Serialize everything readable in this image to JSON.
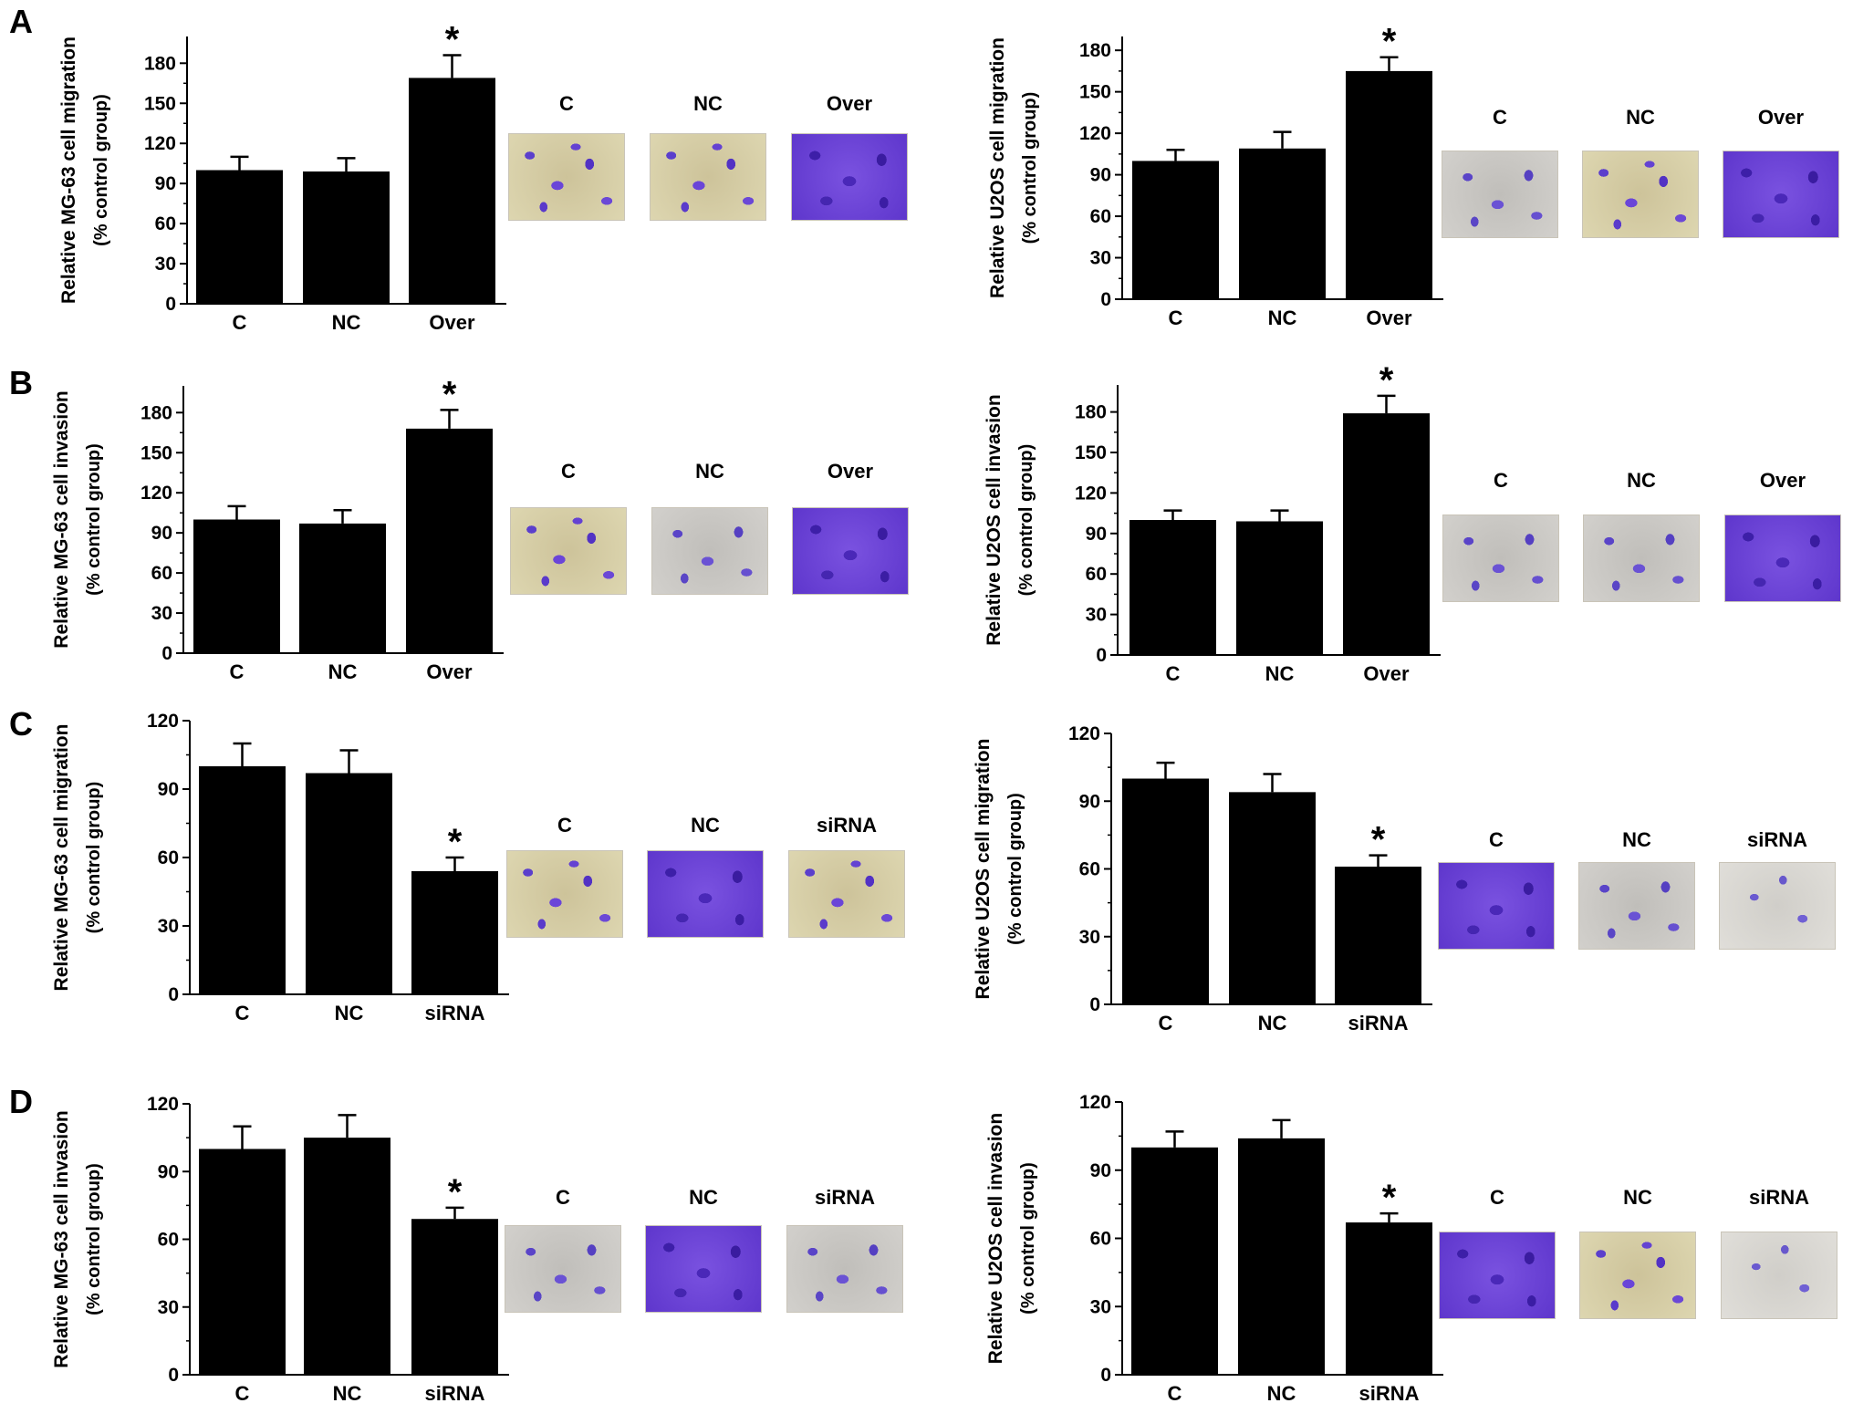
{
  "panel_letters": [
    "A",
    "B",
    "C",
    "D"
  ],
  "chart_data": [
    {
      "id": "A-left",
      "type": "bar",
      "categories": [
        "C",
        "NC",
        "Over"
      ],
      "values": [
        100,
        99,
        169
      ],
      "errors": [
        10,
        10,
        17
      ],
      "significance": [
        "",
        "",
        "*"
      ],
      "ylabel": "Relative MG-63 cell migration",
      "ylabel2": "(% control group)",
      "ylim": [
        0,
        200
      ],
      "yticks": [
        0,
        30,
        60,
        90,
        120,
        150,
        180
      ],
      "photo_labels": [
        "C",
        "NC",
        "Over"
      ]
    },
    {
      "id": "A-right",
      "type": "bar",
      "categories": [
        "C",
        "NC",
        "Over"
      ],
      "values": [
        100,
        109,
        165
      ],
      "errors": [
        8,
        12,
        10
      ],
      "significance": [
        "",
        "",
        "*"
      ],
      "ylabel": "Relative U2OS cell migration",
      "ylabel2": "(% control group)",
      "ylim": [
        0,
        190
      ],
      "yticks": [
        0,
        30,
        60,
        90,
        120,
        150,
        180
      ],
      "photo_labels": [
        "C",
        "NC",
        "Over"
      ]
    },
    {
      "id": "B-left",
      "type": "bar",
      "categories": [
        "C",
        "NC",
        "Over"
      ],
      "values": [
        100,
        97,
        168
      ],
      "errors": [
        10,
        10,
        14
      ],
      "significance": [
        "",
        "",
        "*"
      ],
      "ylabel": "Relative MG-63 cell invasion",
      "ylabel2": "(% control group)",
      "ylim": [
        0,
        200
      ],
      "yticks": [
        0,
        30,
        60,
        90,
        120,
        150,
        180
      ],
      "photo_labels": [
        "C",
        "NC",
        "Over"
      ]
    },
    {
      "id": "B-right",
      "type": "bar",
      "categories": [
        "C",
        "NC",
        "Over"
      ],
      "values": [
        100,
        99,
        179
      ],
      "errors": [
        7,
        8,
        13
      ],
      "significance": [
        "",
        "",
        "*"
      ],
      "ylabel": "Relative U2OS cell invasion",
      "ylabel2": "(% control group)",
      "ylim": [
        0,
        200
      ],
      "yticks": [
        0,
        30,
        60,
        90,
        120,
        150,
        180
      ],
      "photo_labels": [
        "C",
        "NC",
        "Over"
      ]
    },
    {
      "id": "C-left",
      "type": "bar",
      "categories": [
        "C",
        "NC",
        "siRNA"
      ],
      "values": [
        100,
        97,
        54
      ],
      "errors": [
        10,
        10,
        6
      ],
      "significance": [
        "",
        "",
        "*"
      ],
      "ylabel": "Relative MG-63 cell migration",
      "ylabel2": "(% control group)",
      "ylim": [
        0,
        120
      ],
      "yticks": [
        0,
        30,
        60,
        90,
        120
      ],
      "photo_labels": [
        "C",
        "NC",
        "siRNA"
      ]
    },
    {
      "id": "C-right",
      "type": "bar",
      "categories": [
        "C",
        "NC",
        "siRNA"
      ],
      "values": [
        100,
        94,
        61
      ],
      "errors": [
        7,
        8,
        5
      ],
      "significance": [
        "",
        "",
        "*"
      ],
      "ylabel": "Relative U2OS cell migration",
      "ylabel2": "(% control group)",
      "ylim": [
        0,
        120
      ],
      "yticks": [
        0,
        30,
        60,
        90,
        120
      ],
      "photo_labels": [
        "C",
        "NC",
        "siRNA"
      ]
    },
    {
      "id": "D-left",
      "type": "bar",
      "categories": [
        "C",
        "NC",
        "siRNA"
      ],
      "values": [
        100,
        105,
        69
      ],
      "errors": [
        10,
        10,
        5
      ],
      "significance": [
        "",
        "",
        "*"
      ],
      "ylabel": "Relative MG-63 cell invasion",
      "ylabel2": "(% control group)",
      "ylim": [
        0,
        120
      ],
      "yticks": [
        0,
        30,
        60,
        90,
        120
      ],
      "photo_labels": [
        "C",
        "NC",
        "siRNA"
      ]
    },
    {
      "id": "D-right",
      "type": "bar",
      "categories": [
        "C",
        "NC",
        "siRNA"
      ],
      "values": [
        100,
        104,
        67
      ],
      "errors": [
        7,
        8,
        4
      ],
      "significance": [
        "",
        "",
        "*"
      ],
      "ylabel": "Relative U2OS cell invasion",
      "ylabel2": "(% control group)",
      "ylim": [
        0,
        120
      ],
      "yticks": [
        0,
        30,
        60,
        90,
        120
      ],
      "photo_labels": [
        "C",
        "NC",
        "siRNA"
      ]
    }
  ]
}
